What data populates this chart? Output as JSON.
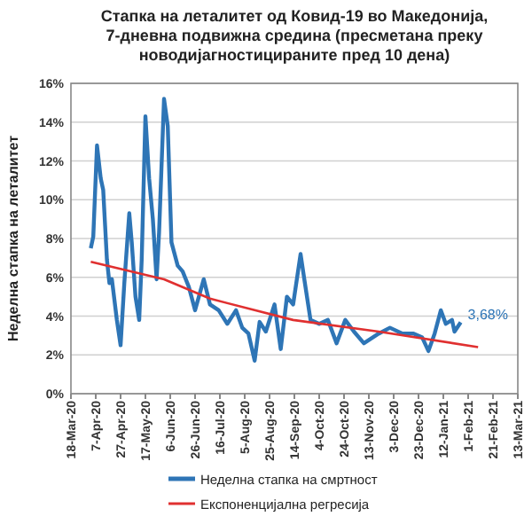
{
  "chart_data": {
    "type": "line",
    "title": "Стапка на леталитет од Ковид-19 во Македонија, 7-дневна подвижна средина (пресметана преку новодијагностицираните пред 10 дена)",
    "ylabel": "Неделна стапка на леталитет",
    "xlim": [
      "2020-03-18",
      "2021-03-13"
    ],
    "xticks": [
      {
        "value": "2020-03-18",
        "label": "18-Mar-20"
      },
      {
        "value": "2020-04-07",
        "label": "7-Apr-20"
      },
      {
        "value": "2020-04-27",
        "label": "27-Apr-20"
      },
      {
        "value": "2020-05-17",
        "label": "17-May-20"
      },
      {
        "value": "2020-06-06",
        "label": "6-Jun-20"
      },
      {
        "value": "2020-06-26",
        "label": "26-Jun-20"
      },
      {
        "value": "2020-07-16",
        "label": "16-Jul-20"
      },
      {
        "value": "2020-08-05",
        "label": "5-Aug-20"
      },
      {
        "value": "2020-08-25",
        "label": "25-Aug-20"
      },
      {
        "value": "2020-09-14",
        "label": "14-Sep-20"
      },
      {
        "value": "2020-10-04",
        "label": "4-Oct-20"
      },
      {
        "value": "2020-10-24",
        "label": "24-Oct-20"
      },
      {
        "value": "2020-11-13",
        "label": "13-Nov-20"
      },
      {
        "value": "2020-12-03",
        "label": "3-Dec-20"
      },
      {
        "value": "2020-12-23",
        "label": "23-Dec-20"
      },
      {
        "value": "2021-01-12",
        "label": "12-Jan-21"
      },
      {
        "value": "2021-02-01",
        "label": "1-Feb-21"
      },
      {
        "value": "2021-02-21",
        "label": "21-Feb-21"
      },
      {
        "value": "2021-03-13",
        "label": "13-Mar-21"
      }
    ],
    "ylim": [
      0,
      16
    ],
    "yticks": [
      {
        "value": 0,
        "label": "0%"
      },
      {
        "value": 2,
        "label": "2%"
      },
      {
        "value": 4,
        "label": "4%"
      },
      {
        "value": 6,
        "label": "6%"
      },
      {
        "value": 8,
        "label": "8%"
      },
      {
        "value": 10,
        "label": "10%"
      },
      {
        "value": 12,
        "label": "12%"
      },
      {
        "value": 14,
        "label": "14%"
      },
      {
        "value": 16,
        "label": "16%"
      }
    ],
    "grid": "y",
    "legend": "bottom",
    "line_style": "solid",
    "series": [
      {
        "name": "Неделна стапка на смртност",
        "color": "#2e75b6",
        "x": [
          "2020-04-03",
          "2020-04-05",
          "2020-04-08",
          "2020-04-11",
          "2020-04-13",
          "2020-04-16",
          "2020-04-18",
          "2020-04-20",
          "2020-04-24",
          "2020-04-27",
          "2020-04-30",
          "2020-05-04",
          "2020-05-06",
          "2020-05-09",
          "2020-05-12",
          "2020-05-14",
          "2020-05-17",
          "2020-05-20",
          "2020-05-23",
          "2020-05-26",
          "2020-05-28",
          "2020-06-01",
          "2020-06-04",
          "2020-06-07",
          "2020-06-12",
          "2020-06-16",
          "2020-06-21",
          "2020-06-26",
          "2020-07-03",
          "2020-07-08",
          "2020-07-15",
          "2020-07-22",
          "2020-07-29",
          "2020-08-03",
          "2020-08-08",
          "2020-08-13",
          "2020-08-17",
          "2020-08-22",
          "2020-08-29",
          "2020-09-03",
          "2020-09-08",
          "2020-09-13",
          "2020-09-19",
          "2020-09-22",
          "2020-09-27",
          "2020-10-04",
          "2020-10-11",
          "2020-10-18",
          "2020-10-25",
          "2020-11-01",
          "2020-11-09",
          "2020-11-21",
          "2020-11-30",
          "2020-12-10",
          "2020-12-19",
          "2020-12-26",
          "2020-12-31",
          "2021-01-05",
          "2021-01-10",
          "2021-01-14",
          "2021-01-19",
          "2021-01-21",
          "2021-01-26"
        ],
        "values": [
          7.5,
          8.1,
          12.8,
          11.1,
          10.5,
          6.9,
          5.7,
          5.9,
          3.8,
          2.5,
          5.7,
          9.3,
          7.8,
          5.0,
          3.8,
          6.9,
          14.3,
          11.1,
          9.0,
          5.9,
          8.3,
          15.2,
          13.8,
          7.8,
          6.6,
          6.3,
          5.5,
          4.3,
          5.9,
          4.6,
          4.3,
          3.6,
          4.3,
          3.4,
          3.1,
          1.7,
          3.7,
          3.2,
          4.6,
          2.3,
          5.0,
          4.6,
          7.2,
          5.9,
          3.8,
          3.6,
          3.8,
          2.6,
          3.8,
          3.2,
          2.6,
          3.1,
          3.4,
          3.1,
          3.1,
          2.9,
          2.2,
          3.1,
          4.3,
          3.6,
          3.8,
          3.2,
          3.68
        ]
      },
      {
        "name": "Експоненцијална регресија",
        "color": "#e03030",
        "x": [
          "2020-04-03",
          "2020-06-01",
          "2020-07-08",
          "2020-09-13",
          "2020-11-21",
          "2021-02-09"
        ],
        "values": [
          6.8,
          5.9,
          4.9,
          3.8,
          3.2,
          2.4
        ]
      }
    ],
    "annotations": [
      {
        "text": "3,68%",
        "x": "2021-01-26",
        "y": 3.68
      }
    ]
  }
}
